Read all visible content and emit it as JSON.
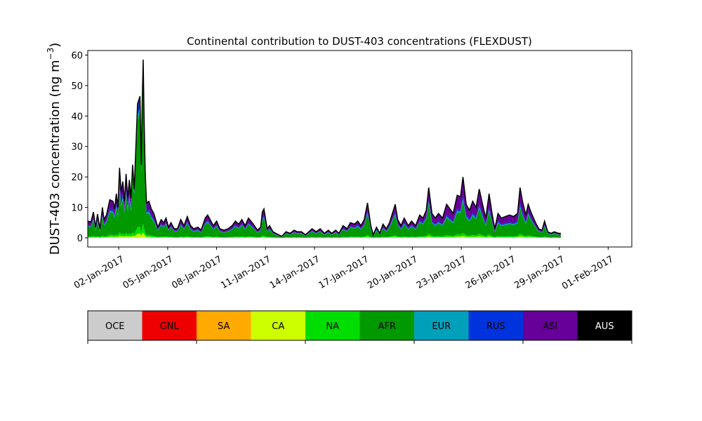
{
  "chart_data": {
    "type": "area",
    "title": "Continental contribution to DUST-403 concentrations (FLEXDUST)",
    "ylabel_main": "DUST-403 concentration (ng m",
    "ylabel_sup": "−3",
    "ylabel_close": ")",
    "xlabel": "",
    "ylim": [
      -3,
      61.5
    ],
    "yticks": [
      0,
      10,
      20,
      30,
      40,
      50,
      60
    ],
    "ytick_labels": [
      "0",
      "10",
      "20",
      "30",
      "40",
      "50",
      "60"
    ],
    "xlim_days_from_jan1": [
      -0.9,
      32.45
    ],
    "xticks_days_from_jan1": [
      1,
      4,
      7,
      10,
      13,
      16,
      19,
      22,
      25,
      28,
      31
    ],
    "xtick_labels": [
      "02-Jan-2017",
      "05-Jan-2017",
      "08-Jan-2017",
      "11-Jan-2017",
      "14-Jan-2017",
      "17-Jan-2017",
      "20-Jan-2017",
      "23-Jan-2017",
      "26-Jan-2017",
      "29-Jan-2017",
      "01-Feb-2017"
    ],
    "grid": false,
    "series_order_bottom_to_top": [
      "CA",
      "NA",
      "AFR",
      "EUR",
      "RUS",
      "ASI"
    ],
    "series_colors": {
      "CA": "#ccff00",
      "NA": "#00dd00",
      "AFR": "#009900",
      "EUR": "#00a0bb",
      "RUS": "#0033dd",
      "ASI": "#660099"
    },
    "total_line_color": "#000000",
    "total_points": [
      [
        -0.88,
        5.5
      ],
      [
        -0.7,
        5.2
      ],
      [
        -0.55,
        8.5
      ],
      [
        -0.42,
        3.5
      ],
      [
        -0.3,
        7.8
      ],
      [
        -0.15,
        3.0
      ],
      [
        0.0,
        10.0
      ],
      [
        0.1,
        6.0
      ],
      [
        0.25,
        7.5
      ],
      [
        0.45,
        12.5
      ],
      [
        0.65,
        12.0
      ],
      [
        0.75,
        9.5
      ],
      [
        0.85,
        14.5
      ],
      [
        0.95,
        10.0
      ],
      [
        1.05,
        23.0
      ],
      [
        1.15,
        15.0
      ],
      [
        1.25,
        18.5
      ],
      [
        1.35,
        12.0
      ],
      [
        1.45,
        21.0
      ],
      [
        1.55,
        13.0
      ],
      [
        1.65,
        19.0
      ],
      [
        1.75,
        13.0
      ],
      [
        1.85,
        24.0
      ],
      [
        1.95,
        16.0
      ],
      [
        2.05,
        30.0
      ],
      [
        2.15,
        44.0
      ],
      [
        2.3,
        46.5
      ],
      [
        2.38,
        24.0
      ],
      [
        2.45,
        47.0
      ],
      [
        2.5,
        58.5
      ],
      [
        2.55,
        40.0
      ],
      [
        2.62,
        22.0
      ],
      [
        2.7,
        11.5
      ],
      [
        2.85,
        12.0
      ],
      [
        3.0,
        9.5
      ],
      [
        3.15,
        8.0
      ],
      [
        3.4,
        3.5
      ],
      [
        3.6,
        6.0
      ],
      [
        3.75,
        5.0
      ],
      [
        3.9,
        6.5
      ],
      [
        4.05,
        3.5
      ],
      [
        4.2,
        5.0
      ],
      [
        4.4,
        3.0
      ],
      [
        4.6,
        3.0
      ],
      [
        4.8,
        6.0
      ],
      [
        5.0,
        4.0
      ],
      [
        5.2,
        7.0
      ],
      [
        5.4,
        4.0
      ],
      [
        5.6,
        3.0
      ],
      [
        5.85,
        3.5
      ],
      [
        6.05,
        2.5
      ],
      [
        6.3,
        6.5
      ],
      [
        6.45,
        7.5
      ],
      [
        6.6,
        6.0
      ],
      [
        6.8,
        4.0
      ],
      [
        7.0,
        5.5
      ],
      [
        7.2,
        3.0
      ],
      [
        7.45,
        2.5
      ],
      [
        7.7,
        3.0
      ],
      [
        7.95,
        4.0
      ],
      [
        8.15,
        5.5
      ],
      [
        8.35,
        4.5
      ],
      [
        8.55,
        6.0
      ],
      [
        8.75,
        4.0
      ],
      [
        8.95,
        6.5
      ],
      [
        9.1,
        5.5
      ],
      [
        9.25,
        4.5
      ],
      [
        9.5,
        2.5
      ],
      [
        9.7,
        3.5
      ],
      [
        9.8,
        8.5
      ],
      [
        9.9,
        9.5
      ],
      [
        10.1,
        3.0
      ],
      [
        10.25,
        4.0
      ],
      [
        10.45,
        2.0
      ],
      [
        10.8,
        1.0
      ],
      [
        11.0,
        0.5
      ],
      [
        11.25,
        2.0
      ],
      [
        11.5,
        1.5
      ],
      [
        11.75,
        2.5
      ],
      [
        11.95,
        2.0
      ],
      [
        12.2,
        2.0
      ],
      [
        12.45,
        1.0
      ],
      [
        12.65,
        2.0
      ],
      [
        12.85,
        3.0
      ],
      [
        13.1,
        2.0
      ],
      [
        13.35,
        3.0
      ],
      [
        13.6,
        1.5
      ],
      [
        13.85,
        2.5
      ],
      [
        14.05,
        1.5
      ],
      [
        14.3,
        2.5
      ],
      [
        14.5,
        1.5
      ],
      [
        14.75,
        4.0
      ],
      [
        15.0,
        3.0
      ],
      [
        15.2,
        5.0
      ],
      [
        15.45,
        4.5
      ],
      [
        15.65,
        5.5
      ],
      [
        15.85,
        4.0
      ],
      [
        16.05,
        6.0
      ],
      [
        16.25,
        11.5
      ],
      [
        16.45,
        4.0
      ],
      [
        16.6,
        1.0
      ],
      [
        16.8,
        3.5
      ],
      [
        17.0,
        1.5
      ],
      [
        17.2,
        4.5
      ],
      [
        17.4,
        3.0
      ],
      [
        17.6,
        5.0
      ],
      [
        17.8,
        8.5
      ],
      [
        17.95,
        11.0
      ],
      [
        18.1,
        6.0
      ],
      [
        18.3,
        4.0
      ],
      [
        18.5,
        6.5
      ],
      [
        18.75,
        4.0
      ],
      [
        18.95,
        5.5
      ],
      [
        19.2,
        4.0
      ],
      [
        19.45,
        7.5
      ],
      [
        19.65,
        6.5
      ],
      [
        19.85,
        9.0
      ],
      [
        20.0,
        16.5
      ],
      [
        20.2,
        8.0
      ],
      [
        20.4,
        6.5
      ],
      [
        20.6,
        8.0
      ],
      [
        20.85,
        6.5
      ],
      [
        21.1,
        11.0
      ],
      [
        21.3,
        9.5
      ],
      [
        21.5,
        8.0
      ],
      [
        21.75,
        14.0
      ],
      [
        21.95,
        13.5
      ],
      [
        22.1,
        20.0
      ],
      [
        22.3,
        11.0
      ],
      [
        22.5,
        9.0
      ],
      [
        22.7,
        12.0
      ],
      [
        22.9,
        10.0
      ],
      [
        23.1,
        16.0
      ],
      [
        23.3,
        11.0
      ],
      [
        23.5,
        6.5
      ],
      [
        23.7,
        14.5
      ],
      [
        23.9,
        7.5
      ],
      [
        24.05,
        3.0
      ],
      [
        24.25,
        8.0
      ],
      [
        24.45,
        6.5
      ],
      [
        24.7,
        7.0
      ],
      [
        24.95,
        7.5
      ],
      [
        25.2,
        7.0
      ],
      [
        25.45,
        8.0
      ],
      [
        25.6,
        16.5
      ],
      [
        25.75,
        12.0
      ],
      [
        25.95,
        7.5
      ],
      [
        26.1,
        11.0
      ],
      [
        26.3,
        8.0
      ],
      [
        26.55,
        5.0
      ],
      [
        26.75,
        3.0
      ],
      [
        26.95,
        2.5
      ],
      [
        27.1,
        5.5
      ],
      [
        27.3,
        2.0
      ],
      [
        27.5,
        1.5
      ],
      [
        27.7,
        2.0
      ],
      [
        27.95,
        1.5
      ],
      [
        28.1,
        1.5
      ]
    ],
    "colorbar": {
      "segments": [
        "OCE",
        "GNL",
        "SA",
        "CA",
        "NA",
        "AFR",
        "EUR",
        "RUS",
        "ASI",
        "AUS"
      ],
      "colors": [
        "#cccccc",
        "#ee0000",
        "#ffaa00",
        "#ccff00",
        "#00dd00",
        "#009900",
        "#00a0bb",
        "#0033dd",
        "#660099",
        "#000000"
      ],
      "label_colors": [
        "#000000",
        "#000000",
        "#000000",
        "#000000",
        "#000000",
        "#000000",
        "#000000",
        "#000000",
        "#000000",
        "#ffffff"
      ],
      "ticks_at_segment_boundaries": [
        0,
        2,
        4,
        6,
        8,
        10
      ]
    }
  }
}
